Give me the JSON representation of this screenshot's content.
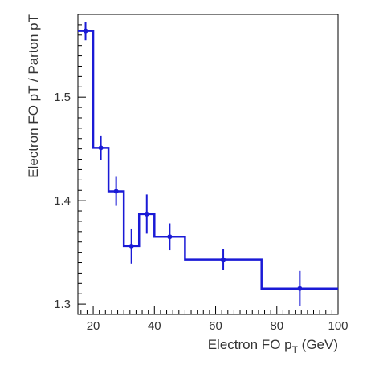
{
  "chart_data": {
    "type": "line",
    "style": "step-histogram-with-error-bars",
    "xlabel": "Electron FO p",
    "xlabel_subscript": "T",
    "xlabel_unit": "(GeV)",
    "ylabel": "Electron FO pT / Parton pT",
    "xlim": [
      15,
      100
    ],
    "ylim": [
      1.29,
      1.58
    ],
    "x_ticks": [
      20,
      40,
      60,
      80,
      100
    ],
    "y_ticks": [
      1.3,
      1.4,
      1.5
    ],
    "x_tick_labels": [
      "20",
      "40",
      "60",
      "80",
      "100"
    ],
    "y_tick_labels": [
      "1.3",
      "1.4",
      "1.5"
    ],
    "grid": false,
    "legend": false,
    "line_color": "#1a1ad6",
    "marker_color": "#1a1ad6",
    "bin_edges": [
      15,
      20,
      25,
      30,
      35,
      40,
      50,
      75,
      100
    ],
    "x": [
      17.5,
      22.5,
      27.5,
      32.5,
      37.5,
      45,
      62.5,
      87.5
    ],
    "y": [
      1.564,
      1.451,
      1.409,
      1.356,
      1.387,
      1.365,
      1.343,
      1.315
    ],
    "y_err": [
      0.009,
      0.012,
      0.014,
      0.017,
      0.019,
      0.013,
      0.01,
      0.017
    ]
  }
}
